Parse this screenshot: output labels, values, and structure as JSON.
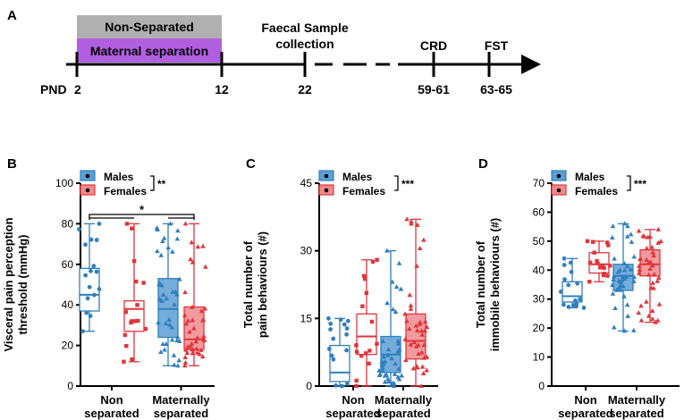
{
  "colors": {
    "males": "#2f7fbf",
    "males_fill": "#5c9fd4",
    "females": "#e0353b",
    "females_fill": "#f08a8e",
    "non_separated_bar": "#b0b0b0",
    "maternal_bar": "#b15fe0"
  },
  "timeline": {
    "panel_letter": "A",
    "non_separated_label": "Non-Separated",
    "maternal_label": "Maternal separation",
    "faecal_label_line1": "Faecal Sample",
    "faecal_label_line2": "collection",
    "crd_label": "CRD",
    "fst_label": "FST",
    "pnd_label": "PND",
    "ticks": [
      "2",
      "12",
      "22",
      "59-61",
      "63-65"
    ]
  },
  "chart_data": [
    {
      "panel": "B",
      "type": "box",
      "ylabel_line1": "Visceral pain perception",
      "ylabel_line2": "threshold (mmHg)",
      "ylim": [
        0,
        100
      ],
      "yticks": [
        "0",
        "20",
        "40",
        "60",
        "80",
        "100"
      ],
      "categories": [
        [
          "Non",
          "separated"
        ],
        [
          "Maternally",
          "separated"
        ]
      ],
      "legend": {
        "males": "Males",
        "females": "Females",
        "sig": "**"
      },
      "annotation": "*",
      "series": [
        {
          "name": "Males",
          "group": "Non separated",
          "min": 27,
          "q1": 37,
          "median": 45,
          "q3": 58,
          "max": 80
        },
        {
          "name": "Females",
          "group": "Non separated",
          "min": 12,
          "q1": 27,
          "median": 38,
          "q3": 42,
          "max": 80
        },
        {
          "name": "Males",
          "group": "Maternally separated",
          "min": 10,
          "q1": 24,
          "median": 38,
          "q3": 53,
          "max": 80
        },
        {
          "name": "Females",
          "group": "Maternally separated",
          "min": 10,
          "q1": 18,
          "median": 23,
          "q3": 39,
          "max": 80
        }
      ]
    },
    {
      "panel": "C",
      "type": "box",
      "ylabel_line1": "Total number of",
      "ylabel_line2": "pain behaviours (#)",
      "ylim": [
        0,
        45
      ],
      "yticks": [
        "0",
        "15",
        "30",
        "45"
      ],
      "categories": [
        [
          "Non",
          "separated"
        ],
        [
          "Maternally",
          "separated"
        ]
      ],
      "legend": {
        "males": "Males",
        "females": "Females",
        "sig": "***"
      },
      "annotation": "",
      "series": [
        {
          "name": "Males",
          "group": "Non separated",
          "min": 0,
          "q1": 1,
          "median": 3,
          "q3": 9,
          "max": 15
        },
        {
          "name": "Females",
          "group": "Non separated",
          "min": 0,
          "q1": 7,
          "median": 11,
          "q3": 16,
          "max": 28
        },
        {
          "name": "Males",
          "group": "Maternally separated",
          "min": 0,
          "q1": 3,
          "median": 7,
          "q3": 11,
          "max": 30
        },
        {
          "name": "Females",
          "group": "Maternally separated",
          "min": 0,
          "q1": 6,
          "median": 10,
          "q3": 16,
          "max": 37
        }
      ]
    },
    {
      "panel": "D",
      "type": "box",
      "ylabel_line1": "Total number of",
      "ylabel_line2": "immobile behaviours (#)",
      "ylim": [
        0,
        70
      ],
      "yticks": [
        "0",
        "10",
        "20",
        "30",
        "40",
        "50",
        "60",
        "70"
      ],
      "categories": [
        [
          "Non",
          "separated"
        ],
        [
          "Maternally",
          "separated"
        ]
      ],
      "legend": {
        "males": "Males",
        "females": "Females",
        "sig": "***"
      },
      "annotation": "",
      "series": [
        {
          "name": "Males",
          "group": "Non separated",
          "min": 27,
          "q1": 29,
          "median": 31,
          "q3": 36,
          "max": 44
        },
        {
          "name": "Females",
          "group": "Non separated",
          "min": 36,
          "q1": 39,
          "median": 42,
          "q3": 46,
          "max": 50
        },
        {
          "name": "Males",
          "group": "Maternally separated",
          "min": 19,
          "q1": 33,
          "median": 38,
          "q3": 42,
          "max": 56
        },
        {
          "name": "Females",
          "group": "Maternally separated",
          "min": 22,
          "q1": 38,
          "median": 42,
          "q3": 47,
          "max": 54
        }
      ]
    }
  ]
}
